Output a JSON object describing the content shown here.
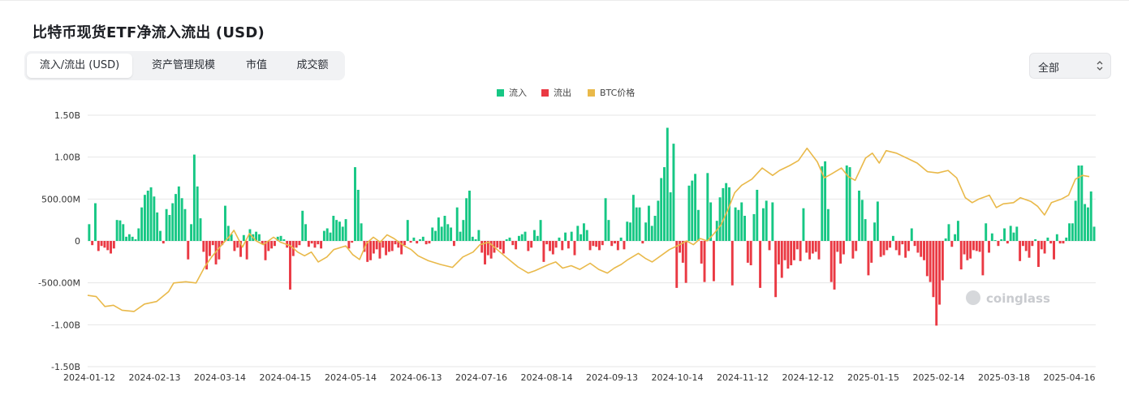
{
  "title": "比特币现货ETF净流入流出 (USD)",
  "tabs": [
    {
      "label": "流入/流出 (USD)",
      "active": true
    },
    {
      "label": "资产管理规模",
      "active": false
    },
    {
      "label": "市值",
      "active": false
    },
    {
      "label": "成交额",
      "active": false
    }
  ],
  "range_select": {
    "value": "全部"
  },
  "watermark": "coinglass",
  "colors": {
    "inflow": "#16c784",
    "outflow": "#ea3943",
    "btc": "#e9b94a",
    "grid": "#e6e6e6"
  },
  "chart_data": {
    "type": "bar",
    "title": "",
    "xlabel": "",
    "ylabel": "",
    "legend": [
      {
        "name": "流入",
        "color": "#16c784"
      },
      {
        "name": "流出",
        "color": "#ea3943"
      },
      {
        "name": "BTC价格",
        "color": "#e9b94a"
      }
    ],
    "legend_position": "top-center",
    "grid": true,
    "ylim": [
      -1500,
      1500
    ],
    "y_unit": "USD millions",
    "yticks": [
      {
        "value": 1500,
        "label": "1.50B"
      },
      {
        "value": 1000,
        "label": "1.00B"
      },
      {
        "value": 500,
        "label": "500.00M"
      },
      {
        "value": 0,
        "label": "0"
      },
      {
        "value": -500,
        "label": "-500.00M"
      },
      {
        "value": -1000,
        "label": "-1.00B"
      },
      {
        "value": -1500,
        "label": "-1.50B"
      }
    ],
    "xticks": [
      "2024-01-12",
      "2024-02-13",
      "2024-03-14",
      "2024-04-15",
      "2024-05-14",
      "2024-06-13",
      "2024-07-16",
      "2024-08-14",
      "2024-09-13",
      "2024-10-14",
      "2024-11-12",
      "2024-12-12",
      "2025-01-15",
      "2025-02-14",
      "2025-03-18",
      "2025-04-16"
    ],
    "series": [
      {
        "name": "净流入/流出",
        "values": [
          200,
          -50,
          450,
          -120,
          -60,
          -80,
          -110,
          -150,
          -90,
          250,
          245,
          200,
          50,
          80,
          50,
          20,
          150,
          400,
          550,
          600,
          640,
          530,
          340,
          120,
          -30,
          380,
          310,
          450,
          560,
          650,
          510,
          380,
          -220,
          200,
          1030,
          650,
          270,
          -130,
          -340,
          -180,
          -50,
          -280,
          -220,
          -50,
          420,
          180,
          80,
          -120,
          -80,
          -190,
          70,
          -220,
          140,
          80,
          110,
          80,
          -40,
          -230,
          -120,
          -90,
          -60,
          50,
          60,
          20,
          -80,
          -580,
          -180,
          -80,
          -50,
          360,
          200,
          -70,
          -30,
          -80,
          -40,
          -90,
          120,
          150,
          100,
          300,
          250,
          230,
          170,
          260,
          -90,
          -20,
          880,
          610,
          210,
          -130,
          -250,
          -230,
          -150,
          -100,
          -210,
          -80,
          -170,
          -130,
          -120,
          -40,
          -80,
          -160,
          -50,
          250,
          -20,
          40,
          -30,
          20,
          50,
          -40,
          -30,
          160,
          120,
          280,
          170,
          300,
          200,
          160,
          -60,
          400,
          110,
          250,
          510,
          600,
          50,
          20,
          130,
          -140,
          -280,
          -170,
          -210,
          -140,
          -80,
          -100,
          -150,
          20,
          40,
          -50,
          -100,
          60,
          80,
          110,
          -120,
          -80,
          130,
          60,
          250,
          -250,
          -40,
          -120,
          -160,
          -80,
          40,
          -110,
          100,
          -90,
          110,
          -170,
          180,
          80,
          210,
          130,
          -110,
          -60,
          -70,
          -110,
          -50,
          510,
          250,
          -60,
          -30,
          -110,
          40,
          -100,
          230,
          220,
          550,
          400,
          400,
          -30,
          220,
          420,
          180,
          300,
          480,
          750,
          880,
          1350,
          580,
          1160,
          -560,
          -140,
          -260,
          -500,
          660,
          720,
          800,
          370,
          -270,
          -490,
          810,
          460,
          -480,
          240,
          520,
          630,
          690,
          640,
          -530,
          400,
          370,
          460,
          300,
          -260,
          -290,
          320,
          610,
          -560,
          390,
          480,
          -110,
          460,
          -670,
          -280,
          -440,
          -230,
          -330,
          -290,
          -230,
          -100,
          -240,
          390,
          -140,
          -220,
          -150,
          -130,
          -220,
          890,
          950,
          380,
          -490,
          -580,
          -130,
          -270,
          -160,
          900,
          880,
          -210,
          -120,
          600,
          490,
          260,
          -410,
          -260,
          220,
          470,
          -190,
          -170,
          -110,
          -80,
          60,
          -110,
          -170,
          -40,
          -200,
          -120,
          150,
          -60,
          -140,
          -190,
          -230,
          -420,
          -490,
          -670,
          -1010,
          -760,
          -470,
          30,
          200,
          -70,
          80,
          240,
          -340,
          -160,
          -230,
          -210,
          -110,
          -120,
          -130,
          -410,
          210,
          -140,
          90,
          10,
          -60,
          20,
          150,
          -30,
          180,
          100,
          170,
          -240,
          -60,
          -120,
          -200,
          -60,
          20,
          -310,
          -100,
          -150,
          40,
          -30,
          -220,
          80,
          -30,
          -30,
          40,
          210,
          210,
          480,
          900,
          900,
          440,
          400,
          590,
          170
        ]
      },
      {
        "name": "BTC价格",
        "unit": "USD",
        "points": [
          [
            0,
            46500
          ],
          [
            5,
            46000
          ],
          [
            10,
            42000
          ],
          [
            15,
            42500
          ],
          [
            20,
            40500
          ],
          [
            27,
            40000
          ],
          [
            33,
            43000
          ],
          [
            40,
            44000
          ],
          [
            47,
            48000
          ],
          [
            50,
            51500
          ],
          [
            57,
            52000
          ],
          [
            63,
            51500
          ],
          [
            68,
            58000
          ],
          [
            72,
            62000
          ],
          [
            78,
            67000
          ],
          [
            82,
            70000
          ],
          [
            85,
            72800
          ],
          [
            90,
            66000
          ],
          [
            94,
            71500
          ],
          [
            98,
            68500
          ],
          [
            102,
            67000
          ],
          [
            108,
            70000
          ],
          [
            112,
            68000
          ],
          [
            118,
            66500
          ],
          [
            122,
            64000
          ],
          [
            126,
            62500
          ],
          [
            130,
            64000
          ],
          [
            134,
            60000
          ],
          [
            139,
            62000
          ],
          [
            143,
            65000
          ],
          [
            150,
            66500
          ],
          [
            154,
            63000
          ],
          [
            158,
            61000
          ],
          [
            162,
            67500
          ],
          [
            166,
            70000
          ],
          [
            170,
            68000
          ],
          [
            174,
            71000
          ],
          [
            178,
            69500
          ],
          [
            184,
            66500
          ],
          [
            188,
            65000
          ],
          [
            192,
            62500
          ],
          [
            198,
            60500
          ],
          [
            205,
            59000
          ],
          [
            212,
            57800
          ],
          [
            218,
            62000
          ],
          [
            224,
            64000
          ],
          [
            228,
            67000
          ],
          [
            233,
            68000
          ],
          [
            238,
            65000
          ],
          [
            243,
            62000
          ],
          [
            250,
            58000
          ],
          [
            256,
            55500
          ],
          [
            260,
            56500
          ],
          [
            268,
            59000
          ],
          [
            272,
            60000
          ],
          [
            276,
            57500
          ],
          [
            281,
            58500
          ],
          [
            286,
            57000
          ],
          [
            292,
            59500
          ],
          [
            297,
            57000
          ],
          [
            302,
            55500
          ],
          [
            306,
            57500
          ],
          [
            310,
            59000
          ],
          [
            314,
            61000
          ],
          [
            320,
            63500
          ],
          [
            324,
            61500
          ],
          [
            328,
            60000
          ],
          [
            334,
            63000
          ],
          [
            338,
            65000
          ],
          [
            344,
            67000
          ],
          [
            348,
            68500
          ],
          [
            352,
            67000
          ],
          [
            356,
            69500
          ],
          [
            360,
            68500
          ],
          [
            364,
            71500
          ],
          [
            368,
            75000
          ],
          [
            372,
            81000
          ],
          [
            376,
            88000
          ],
          [
            380,
            91000
          ],
          [
            386,
            93500
          ],
          [
            392,
            98000
          ],
          [
            398,
            95000
          ],
          [
            402,
            97000
          ],
          [
            408,
            99000
          ],
          [
            413,
            101000
          ],
          [
            418,
            106000
          ],
          [
            424,
            100500
          ],
          [
            428,
            94000
          ],
          [
            432,
            95500
          ],
          [
            438,
            98000
          ],
          [
            442,
            94500
          ],
          [
            446,
            93000
          ],
          [
            452,
            102000
          ],
          [
            456,
            104000
          ],
          [
            460,
            100000
          ],
          [
            464,
            105000
          ],
          [
            470,
            104000
          ],
          [
            476,
            102000
          ],
          [
            482,
            100000
          ],
          [
            488,
            96500
          ],
          [
            494,
            96000
          ],
          [
            500,
            97000
          ],
          [
            505,
            94000
          ],
          [
            510,
            86000
          ],
          [
            514,
            84000
          ],
          [
            518,
            85500
          ],
          [
            524,
            87000
          ],
          [
            528,
            82000
          ],
          [
            532,
            83500
          ],
          [
            538,
            84000
          ],
          [
            542,
            86000
          ],
          [
            548,
            84500
          ],
          [
            552,
            82500
          ],
          [
            556,
            79000
          ],
          [
            560,
            84000
          ],
          [
            566,
            85500
          ],
          [
            570,
            87000
          ],
          [
            574,
            93500
          ],
          [
            578,
            95000
          ],
          [
            582,
            94500
          ]
        ]
      }
    ]
  }
}
